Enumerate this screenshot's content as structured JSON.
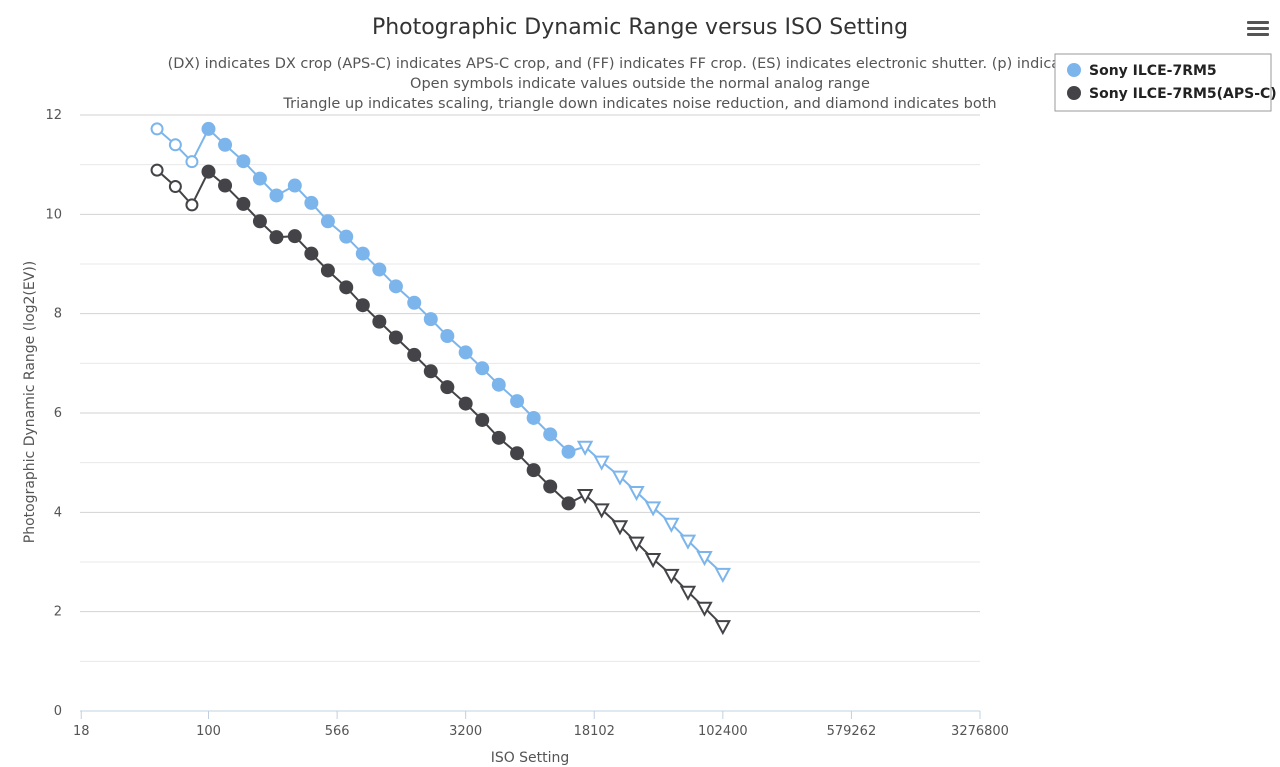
{
  "menu_icon": "hamburger-menu-icon",
  "chart_data": {
    "type": "line",
    "title": "Photographic Dynamic Range versus ISO Setting",
    "subtitle_lines": [
      "(DX) indicates DX crop (APS-C) indicates APS-C crop, and (FF) indicates FF crop. (ES) indicates electronic shutter. (p) indicated pre",
      "Open symbols indicate values outside the normal analog range",
      "Triangle up indicates scaling, triangle down indicates noise reduction, and diamond indicates both"
    ],
    "xlabel": "ISO Setting",
    "ylabel": "Photographic Dynamic Range (log2(EV))",
    "x_scale": "log",
    "xlim": [
      17.7,
      3276800
    ],
    "ylim": [
      0,
      12
    ],
    "x_ticks": [
      18,
      100,
      566,
      3200,
      18102,
      102400,
      579262,
      3276800
    ],
    "y_ticks": [
      0,
      2,
      4,
      6,
      8,
      10,
      12
    ],
    "grid": true,
    "legend_position": "top-right",
    "marker_legend": {
      "filled": "circle",
      "open": "open-circle",
      "noise_reduction": "triangle-down"
    },
    "series": [
      {
        "name": "Sony ILCE-7RM5",
        "color": "#7cb5ec",
        "points": [
          {
            "x": 50,
            "y": 11.72,
            "m": "open"
          },
          {
            "x": 64,
            "y": 11.4,
            "m": "open"
          },
          {
            "x": 80,
            "y": 11.06,
            "m": "open"
          },
          {
            "x": 100,
            "y": 11.72,
            "m": "filled"
          },
          {
            "x": 125,
            "y": 11.4,
            "m": "filled"
          },
          {
            "x": 160,
            "y": 11.07,
            "m": "filled"
          },
          {
            "x": 200,
            "y": 10.72,
            "m": "filled"
          },
          {
            "x": 250,
            "y": 10.38,
            "m": "filled"
          },
          {
            "x": 320,
            "y": 10.58,
            "m": "filled"
          },
          {
            "x": 400,
            "y": 10.23,
            "m": "filled"
          },
          {
            "x": 500,
            "y": 9.86,
            "m": "filled"
          },
          {
            "x": 640,
            "y": 9.55,
            "m": "filled"
          },
          {
            "x": 800,
            "y": 9.21,
            "m": "filled"
          },
          {
            "x": 1000,
            "y": 8.89,
            "m": "filled"
          },
          {
            "x": 1250,
            "y": 8.55,
            "m": "filled"
          },
          {
            "x": 1600,
            "y": 8.22,
            "m": "filled"
          },
          {
            "x": 2000,
            "y": 7.89,
            "m": "filled"
          },
          {
            "x": 2500,
            "y": 7.55,
            "m": "filled"
          },
          {
            "x": 3200,
            "y": 7.22,
            "m": "filled"
          },
          {
            "x": 4000,
            "y": 6.9,
            "m": "filled"
          },
          {
            "x": 5000,
            "y": 6.57,
            "m": "filled"
          },
          {
            "x": 6400,
            "y": 6.24,
            "m": "filled"
          },
          {
            "x": 8000,
            "y": 5.9,
            "m": "filled"
          },
          {
            "x": 10000,
            "y": 5.57,
            "m": "filled"
          },
          {
            "x": 12800,
            "y": 5.22,
            "m": "filled"
          },
          {
            "x": 16000,
            "y": 5.32,
            "m": "tri"
          },
          {
            "x": 20000,
            "y": 5.02,
            "m": "tri"
          },
          {
            "x": 25600,
            "y": 4.72,
            "m": "tri"
          },
          {
            "x": 32000,
            "y": 4.41,
            "m": "tri"
          },
          {
            "x": 40000,
            "y": 4.1,
            "m": "tri"
          },
          {
            "x": 51200,
            "y": 3.77,
            "m": "tri"
          },
          {
            "x": 64000,
            "y": 3.43,
            "m": "tri"
          },
          {
            "x": 80000,
            "y": 3.1,
            "m": "tri"
          },
          {
            "x": 102400,
            "y": 2.76,
            "m": "tri"
          }
        ]
      },
      {
        "name": "Sony ILCE-7RM5(APS-C)",
        "color": "#434348",
        "points": [
          {
            "x": 50,
            "y": 10.89,
            "m": "open"
          },
          {
            "x": 64,
            "y": 10.56,
            "m": "open"
          },
          {
            "x": 80,
            "y": 10.19,
            "m": "open"
          },
          {
            "x": 100,
            "y": 10.86,
            "m": "filled"
          },
          {
            "x": 125,
            "y": 10.58,
            "m": "filled"
          },
          {
            "x": 160,
            "y": 10.21,
            "m": "filled"
          },
          {
            "x": 200,
            "y": 9.86,
            "m": "filled"
          },
          {
            "x": 250,
            "y": 9.54,
            "m": "filled"
          },
          {
            "x": 320,
            "y": 9.56,
            "m": "filled"
          },
          {
            "x": 400,
            "y": 9.21,
            "m": "filled"
          },
          {
            "x": 500,
            "y": 8.87,
            "m": "filled"
          },
          {
            "x": 640,
            "y": 8.53,
            "m": "filled"
          },
          {
            "x": 800,
            "y": 8.17,
            "m": "filled"
          },
          {
            "x": 1000,
            "y": 7.84,
            "m": "filled"
          },
          {
            "x": 1250,
            "y": 7.52,
            "m": "filled"
          },
          {
            "x": 1600,
            "y": 7.17,
            "m": "filled"
          },
          {
            "x": 2000,
            "y": 6.84,
            "m": "filled"
          },
          {
            "x": 2500,
            "y": 6.52,
            "m": "filled"
          },
          {
            "x": 3200,
            "y": 6.19,
            "m": "filled"
          },
          {
            "x": 4000,
            "y": 5.86,
            "m": "filled"
          },
          {
            "x": 5000,
            "y": 5.5,
            "m": "filled"
          },
          {
            "x": 6400,
            "y": 5.19,
            "m": "filled"
          },
          {
            "x": 8000,
            "y": 4.85,
            "m": "filled"
          },
          {
            "x": 10000,
            "y": 4.52,
            "m": "filled"
          },
          {
            "x": 12800,
            "y": 4.18,
            "m": "filled"
          },
          {
            "x": 16000,
            "y": 4.35,
            "m": "tri"
          },
          {
            "x": 20000,
            "y": 4.06,
            "m": "tri"
          },
          {
            "x": 25600,
            "y": 3.72,
            "m": "tri"
          },
          {
            "x": 32000,
            "y": 3.39,
            "m": "tri"
          },
          {
            "x": 40000,
            "y": 3.06,
            "m": "tri"
          },
          {
            "x": 51200,
            "y": 2.74,
            "m": "tri"
          },
          {
            "x": 64000,
            "y": 2.4,
            "m": "tri"
          },
          {
            "x": 80000,
            "y": 2.08,
            "m": "tri"
          },
          {
            "x": 102400,
            "y": 1.71,
            "m": "tri"
          }
        ]
      }
    ]
  }
}
